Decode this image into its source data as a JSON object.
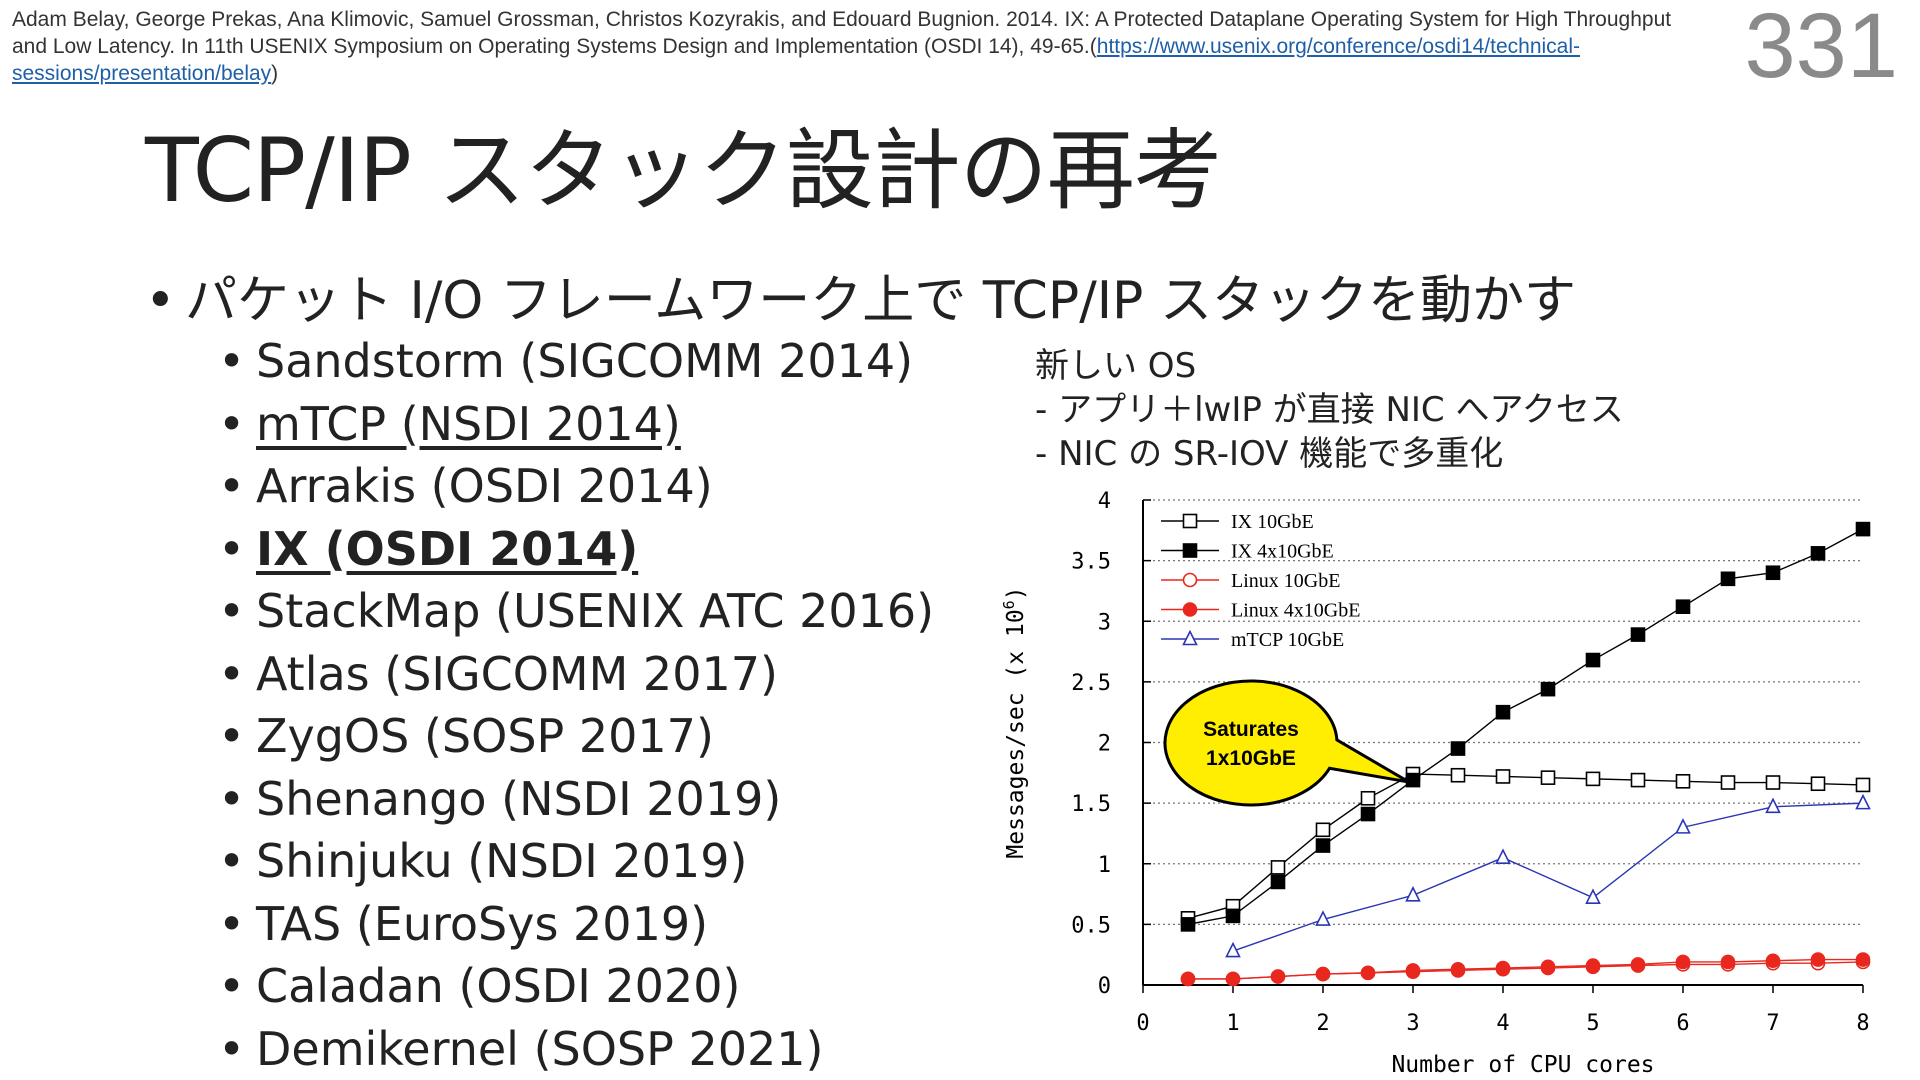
{
  "reference": {
    "text": "Adam Belay, George Prekas, Ana Klimovic, Samuel Grossman, Christos Kozyrakis, and Edouard Bugnion. 2014. IX: A Protected Dataplane Operating System for High Throughput and Low Latency. In 11th USENIX Symposium on Operating Systems Design and Implementation (OSDI 14), 49-65.(",
    "url": "https://www.usenix.org/conference/osdi14/technical-sessions/presentation/belay",
    "close": ")"
  },
  "slide_number": "331",
  "title": "TCP/IP スタック設計の再考",
  "main_bullet": "パケット I/O フレームワーク上で TCP/IP スタックを動かす",
  "bullet_glyph": "•",
  "sub_items": [
    {
      "label": "Sandstorm (SIGCOMM 2014)"
    },
    {
      "label": "mTCP (NSDI 2014)"
    },
    {
      "label": "Arrakis (OSDI 2014)"
    },
    {
      "label": "IX (OSDI 2014)"
    },
    {
      "label": "StackMap (USENIX ATC 2016)"
    },
    {
      "label": "Atlas (SIGCOMM 2017)"
    },
    {
      "label": "ZygOS (SOSP 2017)"
    },
    {
      "label": "Shenango (NSDI 2019)"
    },
    {
      "label": "Shinjuku (NSDI 2019)"
    },
    {
      "label": "TAS (EuroSys 2019)"
    },
    {
      "label": "Caladan (OSDI 2020)"
    },
    {
      "label": "Demikernel (SOSP 2021)"
    }
  ],
  "note": {
    "line1": "新しい OS",
    "line2": "- アプリ＋lwIP が直接 NIC へアクセス",
    "line3": "- NIC の SR-IOV 機能で多重化"
  },
  "chart_data": {
    "type": "line",
    "xlabel": "Number of CPU cores",
    "ylabel": "Messages/sec (x 10",
    "ylabel_exp": "6",
    "ylabel_close": ")",
    "xlim": [
      0,
      8
    ],
    "ylim": [
      0,
      4
    ],
    "xticks": [
      0,
      1,
      2,
      3,
      4,
      5,
      6,
      7,
      8
    ],
    "yticks": [
      0,
      0.5,
      1,
      1.5,
      2,
      2.5,
      3,
      3.5,
      4
    ],
    "ytick_labels": [
      "0",
      "0.5",
      "1",
      "1.5",
      "2",
      "2.5",
      "3",
      "3.5",
      "4"
    ],
    "grid": "horizontal dotted",
    "legend_position": "top-left",
    "series": [
      {
        "name": "IX 10GbE",
        "color": "#000000",
        "marker": "square-open",
        "x": [
          0.5,
          1,
          1.5,
          2,
          2.5,
          3,
          3.5,
          4,
          4.5,
          5,
          5.5,
          6,
          6.5,
          7,
          7.5,
          8
        ],
        "y": [
          0.55,
          0.65,
          0.97,
          1.28,
          1.54,
          1.74,
          1.73,
          1.72,
          1.71,
          1.7,
          1.69,
          1.68,
          1.67,
          1.67,
          1.66,
          1.65
        ]
      },
      {
        "name": "IX 4x10GbE",
        "color": "#000000",
        "marker": "square-filled",
        "x": [
          0.5,
          1,
          1.5,
          2,
          2.5,
          3,
          3.5,
          4,
          4.5,
          5,
          5.5,
          6,
          6.5,
          7,
          7.5,
          8
        ],
        "y": [
          0.5,
          0.57,
          0.85,
          1.15,
          1.41,
          1.69,
          1.95,
          2.25,
          2.44,
          2.68,
          2.89,
          3.12,
          3.35,
          3.4,
          3.56,
          3.76
        ]
      },
      {
        "name": "Linux 10GbE",
        "color": "#e8281e",
        "marker": "circle-open",
        "x": [
          0.5,
          1,
          1.5,
          2,
          2.5,
          3,
          3.5,
          4,
          4.5,
          5,
          5.5,
          6,
          6.5,
          7,
          7.5,
          8
        ],
        "y": [
          0.05,
          0.05,
          0.07,
          0.09,
          0.1,
          0.11,
          0.12,
          0.13,
          0.14,
          0.15,
          0.16,
          0.17,
          0.17,
          0.18,
          0.18,
          0.19
        ]
      },
      {
        "name": "Linux 4x10GbE",
        "color": "#e8281e",
        "marker": "circle-filled",
        "x": [
          0.5,
          1,
          1.5,
          2,
          2.5,
          3,
          3.5,
          4,
          4.5,
          5,
          5.5,
          6,
          6.5,
          7,
          7.5,
          8
        ],
        "y": [
          0.05,
          0.05,
          0.07,
          0.09,
          0.1,
          0.12,
          0.13,
          0.14,
          0.15,
          0.16,
          0.17,
          0.19,
          0.19,
          0.2,
          0.21,
          0.21
        ]
      },
      {
        "name": "mTCP 10GbE",
        "color": "#2a35b5",
        "marker": "triangle-open",
        "x": [
          1,
          2,
          3,
          4,
          5,
          6,
          7,
          8
        ],
        "y": [
          0.28,
          0.54,
          0.74,
          1.05,
          0.72,
          1.3,
          1.47,
          1.5
        ]
      }
    ],
    "annotation": {
      "line1": "Saturates",
      "line2": "1x10GbE",
      "fill": "#ffee00",
      "points_to_x": 3,
      "points_to_y": 1.74
    }
  }
}
